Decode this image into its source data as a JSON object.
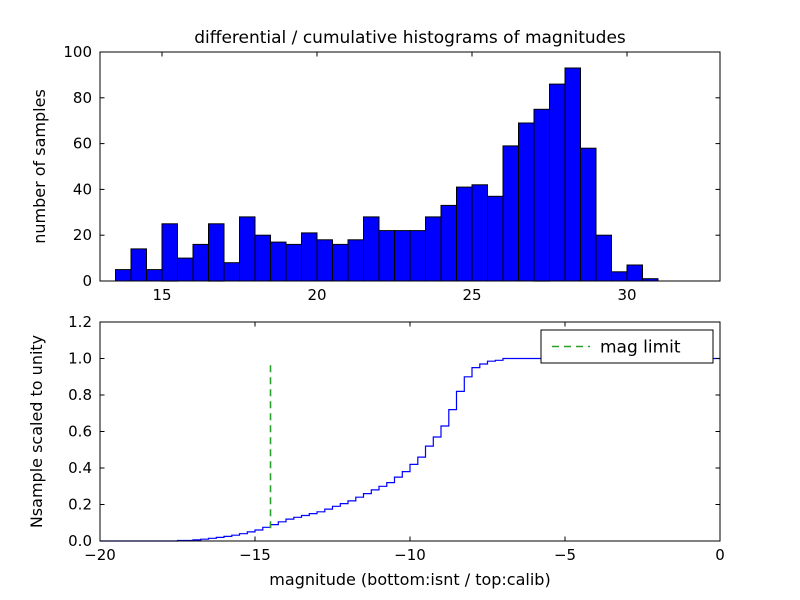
{
  "figure": {
    "background": "#ffffff",
    "title": "differential / cumulative histograms of magnitudes"
  },
  "chart_data": [
    {
      "type": "bar",
      "subplot": "top",
      "title": "differential / cumulative histograms of magnitudes",
      "xlabel": "",
      "ylabel": "number of samples",
      "xlim": [
        13,
        33
      ],
      "ylim": [
        0,
        100
      ],
      "grid": false,
      "xticks": {
        "values": [
          15,
          20,
          25,
          30
        ],
        "labels": [
          "15",
          "20",
          "25",
          "30"
        ]
      },
      "yticks": {
        "values": [
          0,
          20,
          40,
          60,
          80,
          100
        ],
        "labels": [
          "0",
          "20",
          "40",
          "60",
          "80",
          "100"
        ]
      },
      "bar_color": "#0000ff",
      "bar_edge_color": "#000000",
      "bin_start": 13.5,
      "bin_width": 0.5,
      "values": [
        5,
        14,
        5,
        25,
        10,
        16,
        25,
        8,
        28,
        20,
        17,
        16,
        21,
        18,
        16,
        18,
        28,
        22,
        22,
        22,
        28,
        33,
        41,
        42,
        37,
        59,
        69,
        75,
        86,
        93,
        58,
        20,
        4,
        7,
        1
      ]
    },
    {
      "type": "line",
      "subplot": "bottom",
      "style": "step",
      "title": "",
      "xlabel": "magnitude (bottom:isnt / top:calib)",
      "ylabel": "Nsample scaled to unity",
      "xlim": [
        -20,
        0
      ],
      "ylim": [
        0,
        1.2
      ],
      "grid": false,
      "xticks": {
        "values": [
          -20,
          -15,
          -10,
          -5,
          0
        ],
        "labels": [
          "−20",
          "−15",
          "−10",
          "−5",
          "0"
        ]
      },
      "yticks": {
        "values": [
          0,
          0.2,
          0.4,
          0.6,
          0.8,
          1.0,
          1.2
        ],
        "labels": [
          "0.0",
          "0.2",
          "0.4",
          "0.6",
          "0.8",
          "1.0",
          "1.2"
        ]
      },
      "line_color": "#0000ff",
      "points": [
        [
          -20,
          0
        ],
        [
          -17.5,
          0.003
        ],
        [
          -17,
          0.006
        ],
        [
          -16.75,
          0.01
        ],
        [
          -16.5,
          0.015
        ],
        [
          -16.25,
          0.02
        ],
        [
          -16,
          0.025
        ],
        [
          -15.75,
          0.032
        ],
        [
          -15.5,
          0.04
        ],
        [
          -15.25,
          0.05
        ],
        [
          -15,
          0.06
        ],
        [
          -14.75,
          0.075
        ],
        [
          -14.5,
          0.09
        ],
        [
          -14.25,
          0.105
        ],
        [
          -14,
          0.12
        ],
        [
          -13.75,
          0.13
        ],
        [
          -13.5,
          0.14
        ],
        [
          -13.25,
          0.15
        ],
        [
          -13,
          0.16
        ],
        [
          -12.75,
          0.175
        ],
        [
          -12.5,
          0.19
        ],
        [
          -12.25,
          0.205
        ],
        [
          -12,
          0.22
        ],
        [
          -11.75,
          0.24
        ],
        [
          -11.5,
          0.26
        ],
        [
          -11.25,
          0.28
        ],
        [
          -11,
          0.3
        ],
        [
          -10.75,
          0.32
        ],
        [
          -10.5,
          0.35
        ],
        [
          -10.25,
          0.38
        ],
        [
          -10,
          0.42
        ],
        [
          -9.75,
          0.46
        ],
        [
          -9.5,
          0.52
        ],
        [
          -9.25,
          0.57
        ],
        [
          -9,
          0.63
        ],
        [
          -8.75,
          0.72
        ],
        [
          -8.5,
          0.82
        ],
        [
          -8.25,
          0.9
        ],
        [
          -8,
          0.95
        ],
        [
          -7.75,
          0.97
        ],
        [
          -7.5,
          0.985
        ],
        [
          -7.25,
          0.99
        ],
        [
          -7,
          1.0
        ],
        [
          0,
          1.0
        ]
      ],
      "vline": {
        "x": -14.5,
        "ymin": 0.07,
        "ymax": 0.97,
        "color": "#2ca02c",
        "style": "dashed",
        "label": "mag limit"
      },
      "legend": {
        "position": "upper right",
        "entries": [
          {
            "label": "mag limit",
            "color": "#2ca02c",
            "style": "dashed"
          }
        ]
      }
    }
  ]
}
